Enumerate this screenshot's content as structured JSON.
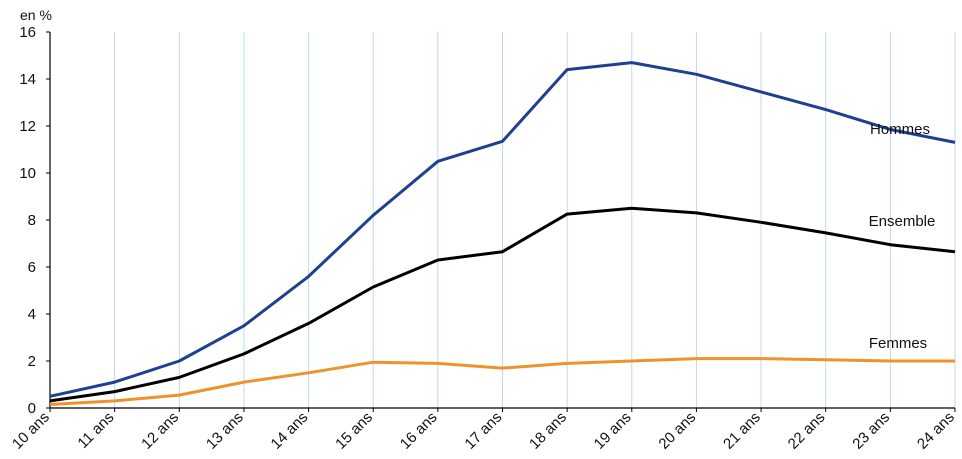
{
  "chart_data": {
    "type": "line",
    "unit_label": "en %",
    "categories": [
      "10 ans",
      "11 ans",
      "12 ans",
      "13 ans",
      "14 ans",
      "15 ans",
      "16 ans",
      "17 ans",
      "18 ans",
      "19 ans",
      "20 ans",
      "21 ans",
      "22 ans",
      "23 ans",
      "24 ans"
    ],
    "ylim": [
      0,
      16
    ],
    "y_ticks": [
      "0",
      "2",
      "4",
      "6",
      "8",
      "10",
      "12",
      "14",
      "16"
    ],
    "grid": "vertical",
    "series": [
      {
        "name": "Hommes",
        "color": "#1f3f8f",
        "values": [
          0.5,
          1.1,
          2.0,
          3.5,
          5.6,
          8.2,
          10.5,
          11.35,
          14.4,
          14.7,
          14.2,
          13.45,
          12.7,
          11.85,
          11.3
        ]
      },
      {
        "name": "Ensemble",
        "color": "#000000",
        "values": [
          0.3,
          0.7,
          1.3,
          2.3,
          3.6,
          5.15,
          6.3,
          6.65,
          8.25,
          8.5,
          8.3,
          7.9,
          7.45,
          6.95,
          6.65
        ]
      },
      {
        "name": "Femmes",
        "color": "#f0922b",
        "values": [
          0.15,
          0.3,
          0.55,
          1.1,
          1.5,
          1.95,
          1.9,
          1.7,
          1.9,
          2.0,
          2.1,
          2.1,
          2.05,
          2.0,
          2.0
        ]
      }
    ]
  }
}
